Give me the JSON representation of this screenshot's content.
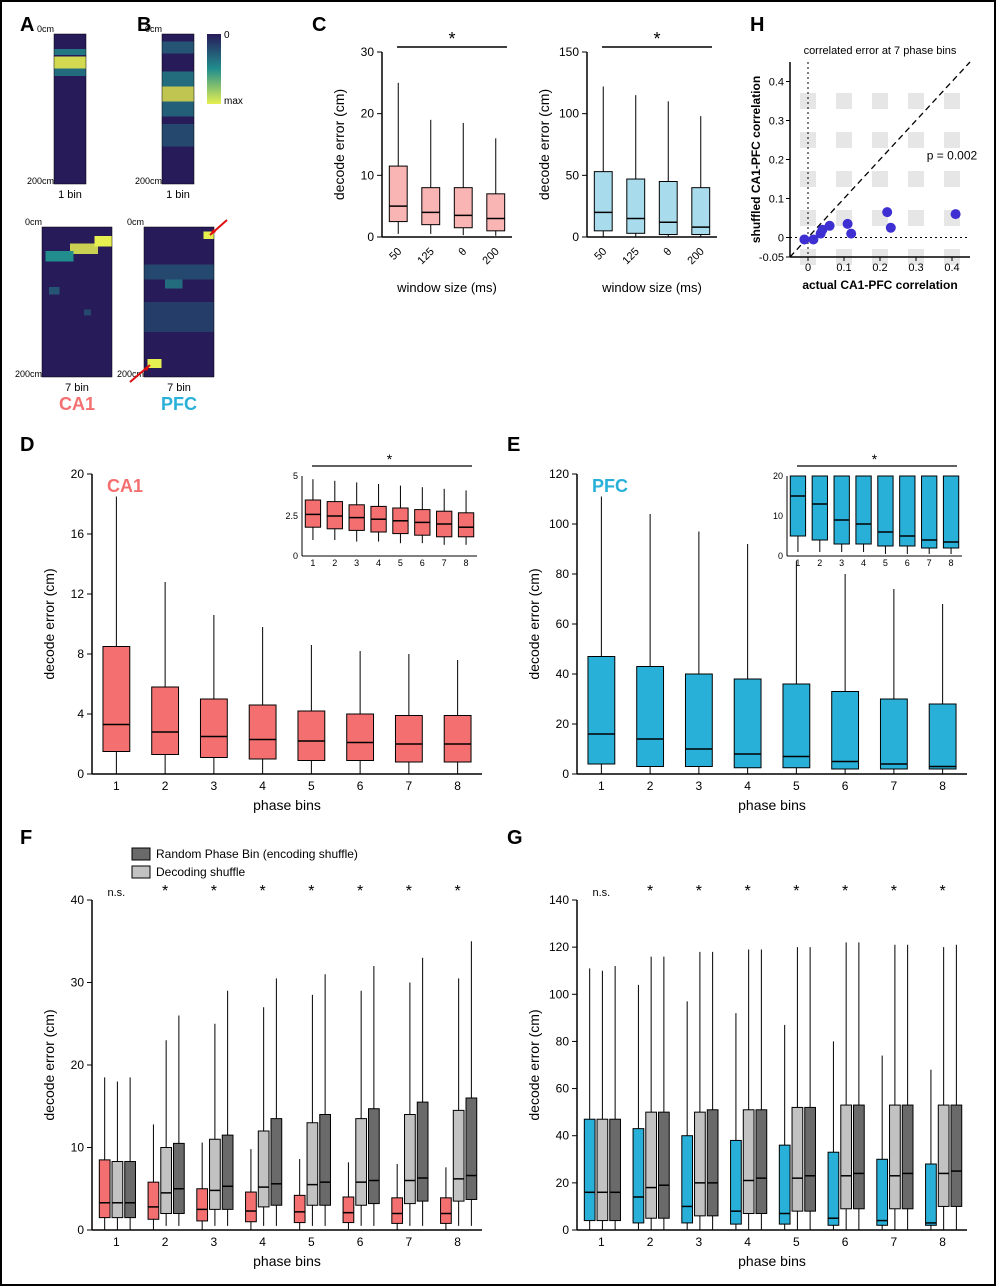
{
  "colors": {
    "ca1": "#f47070",
    "ca1_light": "#f9b4b4",
    "pfc": "#29b0d8",
    "pfc_light": "#a8dced",
    "shuffle_dark": "#6a6a6a",
    "shuffle_light": "#c2c2c2",
    "scatter_point": "#3d2fd1",
    "heatmap_low": "#281b5a",
    "heatmap_mid": "#218e8d",
    "heatmap_high": "#e6f050",
    "arrow": "#e01010",
    "grid": "#e6e6e6",
    "black": "#000000"
  },
  "labels": {
    "A": "A",
    "B": "B",
    "C": "C",
    "D": "D",
    "E": "E",
    "F": "F",
    "G": "G",
    "H": "H",
    "ca1": "CA1",
    "pfc": "PFC",
    "cm0": "0cm",
    "cm200": "200cm",
    "bin1": "1 bin",
    "bin7": "7 bin",
    "colorbar_0": "0",
    "colorbar_max": "max",
    "decode_error": "decode error (cm)",
    "window_size": "window size (ms)",
    "phase_bins": "phase bins",
    "star": "*",
    "ns": "n.s.",
    "legend_dark": "Random Phase Bin (encoding shuffle)",
    "legend_light": "Decoding shuffle",
    "H_title": "correlated error at 7 phase bins",
    "H_p": "p = 0.002",
    "H_x": "actual CA1-PFC correlation",
    "H_y": "shuffled CA1-PFC correlation"
  },
  "panelC": {
    "ca1": {
      "ylim": [
        0,
        30
      ],
      "yticks": [
        0,
        10,
        20,
        30
      ],
      "xlabels": [
        "50",
        "125",
        "θ",
        "200"
      ],
      "boxes": [
        {
          "q1": 2.5,
          "med": 5,
          "q3": 11.5,
          "wlo": 0.5,
          "whi": 25
        },
        {
          "q1": 2,
          "med": 4,
          "q3": 8,
          "wlo": 0.5,
          "whi": 19
        },
        {
          "q1": 1.5,
          "med": 3.5,
          "q3": 8,
          "wlo": 0.3,
          "whi": 18.5
        },
        {
          "q1": 1,
          "med": 3,
          "q3": 7,
          "wlo": 0.2,
          "whi": 16
        }
      ],
      "color_fill": "#f9b4b4"
    },
    "pfc": {
      "ylim": [
        0,
        150
      ],
      "yticks": [
        0,
        50,
        100,
        150
      ],
      "xlabels": [
        "50",
        "125",
        "θ",
        "200"
      ],
      "boxes": [
        {
          "q1": 5,
          "med": 20,
          "q3": 53,
          "wlo": 0,
          "whi": 122
        },
        {
          "q1": 3,
          "med": 15,
          "q3": 47,
          "wlo": 0,
          "whi": 115
        },
        {
          "q1": 2,
          "med": 12,
          "q3": 45,
          "wlo": 0,
          "whi": 110
        },
        {
          "q1": 2,
          "med": 8,
          "q3": 40,
          "wlo": 0,
          "whi": 98
        }
      ],
      "color_fill": "#a8dced"
    }
  },
  "panelD": {
    "ylim": [
      0,
      20
    ],
    "yticks": [
      0,
      4,
      8,
      12,
      16,
      20
    ],
    "xlabels": [
      "1",
      "2",
      "3",
      "4",
      "5",
      "6",
      "7",
      "8"
    ],
    "boxes": [
      {
        "q1": 1.5,
        "med": 3.3,
        "q3": 8.5,
        "wlo": 0,
        "whi": 18.5
      },
      {
        "q1": 1.3,
        "med": 2.8,
        "q3": 5.8,
        "wlo": 0,
        "whi": 12.8
      },
      {
        "q1": 1.1,
        "med": 2.5,
        "q3": 5,
        "wlo": 0,
        "whi": 10.6
      },
      {
        "q1": 1,
        "med": 2.3,
        "q3": 4.6,
        "wlo": 0,
        "whi": 9.8
      },
      {
        "q1": 0.9,
        "med": 2.2,
        "q3": 4.2,
        "wlo": 0,
        "whi": 8.6
      },
      {
        "q1": 0.9,
        "med": 2.1,
        "q3": 4,
        "wlo": 0,
        "whi": 8.2
      },
      {
        "q1": 0.8,
        "med": 2,
        "q3": 3.9,
        "wlo": 0,
        "whi": 8
      },
      {
        "q1": 0.8,
        "med": 2,
        "q3": 3.9,
        "wlo": 0,
        "whi": 7.6
      }
    ],
    "color_fill": "#f47070",
    "inset": {
      "ylim": [
        0,
        5
      ],
      "yticks": [
        0,
        2.5,
        5
      ],
      "boxes": [
        {
          "q1": 1.8,
          "med": 2.6,
          "q3": 3.5,
          "wlo": 1,
          "whi": 4.8
        },
        {
          "q1": 1.7,
          "med": 2.5,
          "q3": 3.4,
          "wlo": 1,
          "whi": 4.7
        },
        {
          "q1": 1.6,
          "med": 2.4,
          "q3": 3.2,
          "wlo": 0.9,
          "whi": 4.6
        },
        {
          "q1": 1.5,
          "med": 2.3,
          "q3": 3.1,
          "wlo": 0.9,
          "whi": 4.5
        },
        {
          "q1": 1.4,
          "med": 2.2,
          "q3": 3,
          "wlo": 0.8,
          "whi": 4.4
        },
        {
          "q1": 1.3,
          "med": 2.1,
          "q3": 2.9,
          "wlo": 0.8,
          "whi": 4.3
        },
        {
          "q1": 1.2,
          "med": 2,
          "q3": 2.8,
          "wlo": 0.7,
          "whi": 4.2
        },
        {
          "q1": 1.2,
          "med": 1.8,
          "q3": 2.7,
          "wlo": 0.7,
          "whi": 4.1
        }
      ]
    }
  },
  "panelE": {
    "ylim": [
      0,
      120
    ],
    "yticks": [
      0,
      20,
      40,
      60,
      80,
      100,
      120
    ],
    "xlabels": [
      "1",
      "2",
      "3",
      "4",
      "5",
      "6",
      "7",
      "8"
    ],
    "boxes": [
      {
        "q1": 4,
        "med": 16,
        "q3": 47,
        "wlo": 0,
        "whi": 111
      },
      {
        "q1": 3,
        "med": 14,
        "q3": 43,
        "wlo": 0,
        "whi": 104
      },
      {
        "q1": 3,
        "med": 10,
        "q3": 40,
        "wlo": 0,
        "whi": 97
      },
      {
        "q1": 2.5,
        "med": 8,
        "q3": 38,
        "wlo": 0,
        "whi": 92
      },
      {
        "q1": 2.5,
        "med": 7,
        "q3": 36,
        "wlo": 0,
        "whi": 87
      },
      {
        "q1": 2,
        "med": 5,
        "q3": 33,
        "wlo": 0,
        "whi": 80
      },
      {
        "q1": 2,
        "med": 4,
        "q3": 30,
        "wlo": 0,
        "whi": 74
      },
      {
        "q1": 2,
        "med": 3,
        "q3": 28,
        "wlo": 0,
        "whi": 68
      }
    ],
    "color_fill": "#29b0d8",
    "inset": {
      "ylim": [
        0,
        20
      ],
      "yticks": [
        0,
        10,
        20
      ],
      "boxes": [
        {
          "q1": 5,
          "med": 15,
          "q3": 20,
          "wlo": 1,
          "whi": 20
        },
        {
          "q1": 4,
          "med": 13,
          "q3": 20,
          "wlo": 1,
          "whi": 20
        },
        {
          "q1": 3,
          "med": 9,
          "q3": 20,
          "wlo": 1,
          "whi": 20
        },
        {
          "q1": 3,
          "med": 8,
          "q3": 20,
          "wlo": 1,
          "whi": 20
        },
        {
          "q1": 2.5,
          "med": 6,
          "q3": 20,
          "wlo": 0.5,
          "whi": 20
        },
        {
          "q1": 2.5,
          "med": 5,
          "q3": 20,
          "wlo": 0.5,
          "whi": 20
        },
        {
          "q1": 2,
          "med": 4,
          "q3": 20,
          "wlo": 0.5,
          "whi": 20
        },
        {
          "q1": 2,
          "med": 3.5,
          "q3": 20,
          "wlo": 0.5,
          "whi": 20
        }
      ]
    }
  },
  "panelF": {
    "ylim": [
      0,
      40
    ],
    "yticks": [
      0,
      10,
      20,
      30,
      40
    ],
    "xlabels": [
      "1",
      "2",
      "3",
      "4",
      "5",
      "6",
      "7",
      "8"
    ],
    "sig": [
      "n.s.",
      "*",
      "*",
      "*",
      "*",
      "*",
      "*",
      "*"
    ],
    "groups": [
      [
        {
          "q1": 1.5,
          "med": 3.3,
          "q3": 8.5,
          "wlo": 0,
          "whi": 18.5
        },
        {
          "q1": 1.5,
          "med": 3.3,
          "q3": 8.3,
          "wlo": 0,
          "whi": 18
        },
        {
          "q1": 1.5,
          "med": 3.3,
          "q3": 8.3,
          "wlo": 0,
          "whi": 18.5
        }
      ],
      [
        {
          "q1": 1.3,
          "med": 2.8,
          "q3": 5.8,
          "wlo": 0,
          "whi": 12.8
        },
        {
          "q1": 2,
          "med": 4.5,
          "q3": 10,
          "wlo": 0.5,
          "whi": 23
        },
        {
          "q1": 2,
          "med": 5,
          "q3": 10.5,
          "wlo": 0.5,
          "whi": 26
        }
      ],
      [
        {
          "q1": 1.1,
          "med": 2.5,
          "q3": 5,
          "wlo": 0,
          "whi": 10.6
        },
        {
          "q1": 2.5,
          "med": 4.8,
          "q3": 11,
          "wlo": 0.5,
          "whi": 25
        },
        {
          "q1": 2.5,
          "med": 5.3,
          "q3": 11.5,
          "wlo": 0.5,
          "whi": 29
        }
      ],
      [
        {
          "q1": 1,
          "med": 2.3,
          "q3": 4.6,
          "wlo": 0,
          "whi": 9.8
        },
        {
          "q1": 2.8,
          "med": 5.2,
          "q3": 12,
          "wlo": 0.5,
          "whi": 27
        },
        {
          "q1": 3,
          "med": 5.6,
          "q3": 13.5,
          "wlo": 0.5,
          "whi": 30.5
        }
      ],
      [
        {
          "q1": 0.9,
          "med": 2.2,
          "q3": 4.2,
          "wlo": 0,
          "whi": 8.6
        },
        {
          "q1": 3,
          "med": 5.5,
          "q3": 13,
          "wlo": 0.5,
          "whi": 28.5
        },
        {
          "q1": 3,
          "med": 5.8,
          "q3": 14,
          "wlo": 0.5,
          "whi": 31
        }
      ],
      [
        {
          "q1": 0.9,
          "med": 2.1,
          "q3": 4,
          "wlo": 0,
          "whi": 8.2
        },
        {
          "q1": 3,
          "med": 5.8,
          "q3": 13.5,
          "wlo": 0.5,
          "whi": 29
        },
        {
          "q1": 3.2,
          "med": 6,
          "q3": 14.7,
          "wlo": 0.5,
          "whi": 32
        }
      ],
      [
        {
          "q1": 0.8,
          "med": 2,
          "q3": 3.9,
          "wlo": 0,
          "whi": 8
        },
        {
          "q1": 3.2,
          "med": 6,
          "q3": 14,
          "wlo": 0.5,
          "whi": 30
        },
        {
          "q1": 3.5,
          "med": 6.3,
          "q3": 15.5,
          "wlo": 0.5,
          "whi": 33
        }
      ],
      [
        {
          "q1": 0.8,
          "med": 2,
          "q3": 3.9,
          "wlo": 0,
          "whi": 7.6
        },
        {
          "q1": 3.5,
          "med": 6.2,
          "q3": 14.5,
          "wlo": 0.5,
          "whi": 30.5
        },
        {
          "q1": 3.7,
          "med": 6.6,
          "q3": 16,
          "wlo": 0.5,
          "whi": 35
        }
      ]
    ],
    "colors": [
      "#f47070",
      "#c2c2c2",
      "#6a6a6a"
    ]
  },
  "panelG": {
    "ylim": [
      0,
      140
    ],
    "yticks": [
      0,
      20,
      40,
      60,
      80,
      100,
      120,
      140
    ],
    "xlabels": [
      "1",
      "2",
      "3",
      "4",
      "5",
      "6",
      "7",
      "8"
    ],
    "sig": [
      "n.s.",
      "*",
      "*",
      "*",
      "*",
      "*",
      "*",
      "*"
    ],
    "groups": [
      [
        {
          "q1": 4,
          "med": 16,
          "q3": 47,
          "wlo": 0,
          "whi": 111
        },
        {
          "q1": 4,
          "med": 16,
          "q3": 47,
          "wlo": 0,
          "whi": 110
        },
        {
          "q1": 4,
          "med": 16,
          "q3": 47,
          "wlo": 0,
          "whi": 112
        }
      ],
      [
        {
          "q1": 3,
          "med": 14,
          "q3": 43,
          "wlo": 0,
          "whi": 104
        },
        {
          "q1": 5,
          "med": 18,
          "q3": 50,
          "wlo": 0,
          "whi": 116
        },
        {
          "q1": 5,
          "med": 19,
          "q3": 50,
          "wlo": 0,
          "whi": 116
        }
      ],
      [
        {
          "q1": 3,
          "med": 10,
          "q3": 40,
          "wlo": 0,
          "whi": 97
        },
        {
          "q1": 6,
          "med": 20,
          "q3": 50,
          "wlo": 0,
          "whi": 118
        },
        {
          "q1": 6,
          "med": 20,
          "q3": 51,
          "wlo": 0,
          "whi": 118
        }
      ],
      [
        {
          "q1": 2.5,
          "med": 8,
          "q3": 38,
          "wlo": 0,
          "whi": 92
        },
        {
          "q1": 7,
          "med": 21,
          "q3": 51,
          "wlo": 0,
          "whi": 119
        },
        {
          "q1": 7,
          "med": 22,
          "q3": 51,
          "wlo": 0,
          "whi": 119
        }
      ],
      [
        {
          "q1": 2.5,
          "med": 7,
          "q3": 36,
          "wlo": 0,
          "whi": 87
        },
        {
          "q1": 8,
          "med": 22,
          "q3": 52,
          "wlo": 0,
          "whi": 120
        },
        {
          "q1": 8,
          "med": 23,
          "q3": 52,
          "wlo": 0,
          "whi": 120
        }
      ],
      [
        {
          "q1": 2,
          "med": 5,
          "q3": 33,
          "wlo": 0,
          "whi": 80
        },
        {
          "q1": 9,
          "med": 23,
          "q3": 53,
          "wlo": 0,
          "whi": 122
        },
        {
          "q1": 9,
          "med": 24,
          "q3": 53,
          "wlo": 0,
          "whi": 122
        }
      ],
      [
        {
          "q1": 2,
          "med": 4,
          "q3": 30,
          "wlo": 0,
          "whi": 74
        },
        {
          "q1": 9,
          "med": 23,
          "q3": 53,
          "wlo": 0,
          "whi": 121
        },
        {
          "q1": 9,
          "med": 24,
          "q3": 53,
          "wlo": 0,
          "whi": 121
        }
      ],
      [
        {
          "q1": 2,
          "med": 3,
          "q3": 28,
          "wlo": 0,
          "whi": 68
        },
        {
          "q1": 10,
          "med": 24,
          "q3": 53,
          "wlo": 0,
          "whi": 120
        },
        {
          "q1": 10,
          "med": 25,
          "q3": 53,
          "wlo": 0,
          "whi": 121
        }
      ]
    ],
    "colors": [
      "#29b0d8",
      "#c2c2c2",
      "#6a6a6a"
    ]
  },
  "panelH": {
    "xlim": [
      -0.05,
      0.45
    ],
    "ylim": [
      -0.05,
      0.45
    ],
    "xticks": [
      0,
      0.1,
      0.2,
      0.3,
      0.4
    ],
    "yticks": [
      -0.05,
      0,
      0.1,
      0.2,
      0.3,
      0.4
    ],
    "points": [
      {
        "x": -0.01,
        "y": -0.005
      },
      {
        "x": 0.015,
        "y": -0.005
      },
      {
        "x": 0.035,
        "y": 0.01
      },
      {
        "x": 0.04,
        "y": 0.02
      },
      {
        "x": 0.06,
        "y": 0.03
      },
      {
        "x": 0.11,
        "y": 0.035
      },
      {
        "x": 0.12,
        "y": 0.01
      },
      {
        "x": 0.22,
        "y": 0.065
      },
      {
        "x": 0.23,
        "y": 0.025
      },
      {
        "x": 0.41,
        "y": 0.06
      }
    ]
  }
}
